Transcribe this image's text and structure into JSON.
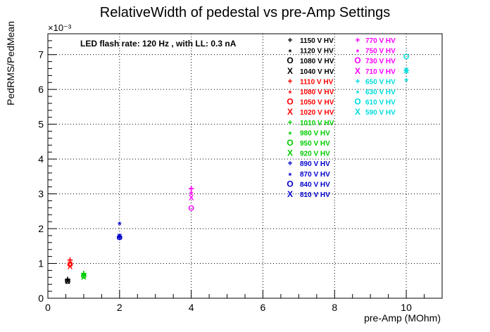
{
  "chart_data": {
    "type": "scatter",
    "title": "RelativeWidth of pedestal vs pre-Amp Settings",
    "xlabel": "pre-Amp (MOhm)",
    "ylabel": "PedRMS/PedMean",
    "y_multiplier": "×10⁻³",
    "annotation": "LED flash rate: 120 Hz , with LL: 0.3 nA",
    "xlim": [
      0,
      11
    ],
    "ylim": [
      0,
      7.6
    ],
    "xticks": [
      0,
      2,
      4,
      6,
      8,
      10
    ],
    "yticks": [
      0,
      1,
      2,
      3,
      4,
      5,
      6,
      7
    ],
    "grid": true,
    "legend_position": "top-right",
    "series": [
      {
        "name": "1150 V HV",
        "marker": "+",
        "color": "#000000",
        "x": [
          0.55
        ],
        "y": [
          0.55
        ]
      },
      {
        "name": "1120 V HV",
        "marker": "*",
        "color": "#000000",
        "x": [
          0.55
        ],
        "y": [
          0.52
        ]
      },
      {
        "name": "1080 V HV",
        "marker": "o",
        "color": "#000000",
        "x": [
          0.55
        ],
        "y": [
          0.5
        ]
      },
      {
        "name": "1040 V HV",
        "marker": "x",
        "color": "#000000",
        "x": [
          0.55
        ],
        "y": [
          0.5
        ]
      },
      {
        "name": "1110 V HV",
        "marker": "+",
        "color": "#ff0000",
        "x": [
          0.62
        ],
        "y": [
          1.1
        ]
      },
      {
        "name": "1080 V HV",
        "marker": "*",
        "color": "#ff0000",
        "x": [
          0.62
        ],
        "y": [
          1.05
        ]
      },
      {
        "name": "1050 V HV",
        "marker": "o",
        "color": "#ff0000",
        "x": [
          0.62
        ],
        "y": [
          0.98
        ]
      },
      {
        "name": "1020 V HV",
        "marker": "x",
        "color": "#ff0000",
        "x": [
          0.62
        ],
        "y": [
          0.92
        ]
      },
      {
        "name": "1010 V HV",
        "marker": "+",
        "color": "#00cc00",
        "x": [
          1.0
        ],
        "y": [
          0.72
        ]
      },
      {
        "name": "980 V HV",
        "marker": "*",
        "color": "#00cc00",
        "x": [
          1.0
        ],
        "y": [
          0.7
        ]
      },
      {
        "name": "950 V HV",
        "marker": "o",
        "color": "#00cc00",
        "x": [
          1.0
        ],
        "y": [
          0.65
        ]
      },
      {
        "name": "920 V HV",
        "marker": "x",
        "color": "#00cc00",
        "x": [
          1.0
        ],
        "y": [
          0.62
        ]
      },
      {
        "name": "890 V HV",
        "marker": "+",
        "color": "#0000cc",
        "x": [
          2.0
        ],
        "y": [
          1.78
        ]
      },
      {
        "name": "870 V HV",
        "marker": "*",
        "color": "#0000cc",
        "x": [
          2.0
        ],
        "y": [
          2.17
        ]
      },
      {
        "name": "840 V HV",
        "marker": "o",
        "color": "#0000cc",
        "x": [
          2.0
        ],
        "y": [
          1.75
        ]
      },
      {
        "name": "810 V HV",
        "marker": "x",
        "color": "#0000cc",
        "x": [
          2.0
        ],
        "y": [
          1.78
        ]
      },
      {
        "name": "770 V HV",
        "marker": "+",
        "color": "#ff00ff",
        "x": [
          4.0
        ],
        "y": [
          3.15
        ]
      },
      {
        "name": "750 V HV",
        "marker": "*",
        "color": "#ff00ff",
        "x": [
          4.0
        ],
        "y": [
          3.05
        ]
      },
      {
        "name": "730 V HV",
        "marker": "o",
        "color": "#ff00ff",
        "x": [
          4.0
        ],
        "y": [
          2.6
        ]
      },
      {
        "name": "710 V HV",
        "marker": "x",
        "color": "#ff00ff",
        "x": [
          4.0
        ],
        "y": [
          2.9
        ]
      },
      {
        "name": "650 V HV",
        "marker": "+",
        "color": "#00dddd",
        "x": [
          10.0
        ],
        "y": [
          6.55
        ]
      },
      {
        "name": "630 V HV",
        "marker": "*",
        "color": "#00dddd",
        "x": [
          10.0
        ],
        "y": [
          6.3
        ]
      },
      {
        "name": "610 V HV",
        "marker": "o",
        "color": "#00dddd",
        "x": [
          10.0
        ],
        "y": [
          6.95
        ]
      },
      {
        "name": "590 V HV",
        "marker": "x",
        "color": "#00dddd",
        "x": [
          10.0
        ],
        "y": [
          6.55
        ]
      }
    ]
  }
}
